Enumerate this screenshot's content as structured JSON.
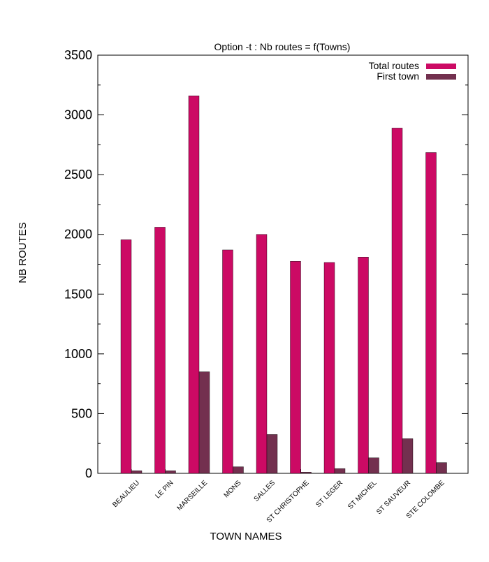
{
  "chart_data": {
    "type": "bar",
    "title": "Option -t : Nb routes = f(Towns)",
    "xlabel": "TOWN NAMES",
    "ylabel": "NB ROUTES",
    "ylim": [
      0,
      3500
    ],
    "yticks": [
      0,
      500,
      1000,
      1500,
      2000,
      2500,
      3000,
      3500
    ],
    "grid": false,
    "legend_position": "top-right",
    "categories": [
      "BEAULIEU",
      "LE PIN",
      "MARSEILLE",
      "MONS",
      "SALLES",
      "ST CHRISTOPHE",
      "ST LEGER",
      "ST MICHEL",
      "ST SAUVEUR",
      "STE COLOMBE"
    ],
    "series": [
      {
        "name": "Total routes",
        "color": "#cc0a64",
        "values": [
          1955,
          2060,
          3160,
          1870,
          2000,
          1775,
          1765,
          1810,
          2890,
          2685
        ]
      },
      {
        "name": "First town",
        "color": "#73304f",
        "values": [
          22,
          22,
          850,
          55,
          325,
          10,
          40,
          130,
          290,
          90
        ]
      }
    ]
  }
}
